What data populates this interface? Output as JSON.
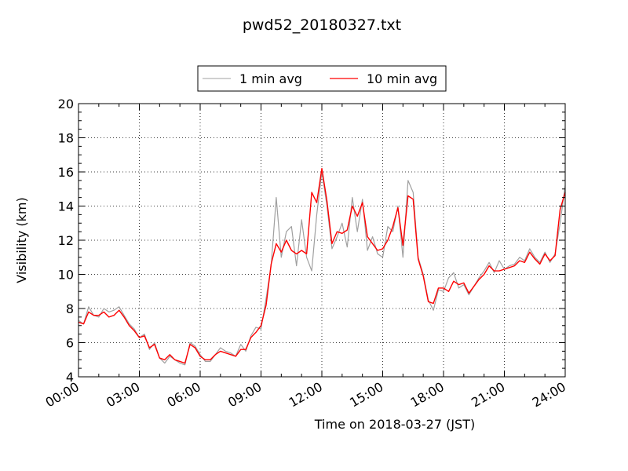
{
  "chart_data": {
    "type": "line",
    "title": "pwd52_20180327.txt",
    "xlabel": "Time on 2018-03-27 (JST)",
    "ylabel": "Visibility (km)",
    "xlim": [
      "00:00",
      "24:00"
    ],
    "ylim": [
      4,
      20
    ],
    "x_ticks": [
      "00:00",
      "03:00",
      "06:00",
      "09:00",
      "12:00",
      "15:00",
      "18:00",
      "21:00",
      "24:00"
    ],
    "y_ticks": [
      "4",
      "6",
      "8",
      "10",
      "12",
      "14",
      "16",
      "18",
      "20"
    ],
    "grid": true,
    "legend_position": "top-center",
    "series": [
      {
        "name": "1 min avg",
        "color": "#a0a0a0",
        "x": [
          "00:00",
          "00:15",
          "00:30",
          "00:45",
          "01:00",
          "01:15",
          "01:30",
          "01:45",
          "02:00",
          "02:15",
          "02:30",
          "02:45",
          "03:00",
          "03:15",
          "03:30",
          "03:45",
          "04:00",
          "04:15",
          "04:30",
          "04:45",
          "05:00",
          "05:15",
          "05:30",
          "05:45",
          "06:00",
          "06:15",
          "06:30",
          "06:45",
          "07:00",
          "07:15",
          "07:30",
          "07:45",
          "08:00",
          "08:15",
          "08:30",
          "08:45",
          "09:00",
          "09:15",
          "09:30",
          "09:45",
          "10:00",
          "10:15",
          "10:30",
          "10:45",
          "11:00",
          "11:15",
          "11:30",
          "11:45",
          "12:00",
          "12:15",
          "12:30",
          "12:45",
          "13:00",
          "13:15",
          "13:30",
          "13:45",
          "14:00",
          "14:15",
          "14:30",
          "14:45",
          "15:00",
          "15:15",
          "15:30",
          "15:45",
          "16:00",
          "16:15",
          "16:30",
          "16:45",
          "17:00",
          "17:15",
          "17:30",
          "17:45",
          "18:00",
          "18:15",
          "18:30",
          "18:45",
          "19:00",
          "19:15",
          "19:30",
          "19:45",
          "20:00",
          "20:15",
          "20:30",
          "20:45",
          "21:00",
          "21:15",
          "21:30",
          "21:45",
          "22:00",
          "22:15",
          "22:30",
          "22:45",
          "23:00",
          "23:15",
          "23:30",
          "23:45",
          "24:00"
        ],
        "values": [
          7.3,
          7.1,
          8.1,
          7.6,
          7.5,
          8.0,
          7.8,
          7.9,
          8.1,
          7.6,
          7.1,
          6.8,
          6.3,
          6.5,
          5.6,
          6.0,
          5.1,
          4.8,
          5.2,
          5.0,
          4.8,
          4.7,
          6.0,
          5.8,
          5.3,
          4.9,
          4.9,
          5.3,
          5.7,
          5.5,
          5.4,
          5.2,
          5.9,
          5.5,
          6.4,
          6.9,
          6.8,
          8.6,
          10.5,
          14.5,
          11.0,
          12.5,
          12.8,
          10.5,
          13.2,
          11.0,
          10.2,
          13.5,
          16.0,
          14.0,
          11.5,
          12.2,
          13.0,
          11.6,
          14.5,
          12.5,
          14.4,
          11.4,
          12.2,
          11.2,
          11.0,
          12.8,
          12.5,
          14.0,
          11.0,
          15.5,
          14.8,
          11.0,
          10.0,
          8.5,
          7.9,
          9.1,
          9.0,
          9.8,
          10.1,
          9.2,
          9.4,
          8.8,
          9.3,
          9.8,
          10.2,
          10.7,
          10.1,
          10.8,
          10.3,
          10.5,
          10.6,
          11.0,
          10.8,
          11.5,
          11.0,
          10.7,
          11.3,
          10.7,
          11.2,
          13.0,
          15.2
        ]
      },
      {
        "name": "10 min avg",
        "color": "#ff0000",
        "x": [
          "00:00",
          "00:15",
          "00:30",
          "00:45",
          "01:00",
          "01:15",
          "01:30",
          "01:45",
          "02:00",
          "02:15",
          "02:30",
          "02:45",
          "03:00",
          "03:15",
          "03:30",
          "03:45",
          "04:00",
          "04:15",
          "04:30",
          "04:45",
          "05:00",
          "05:15",
          "05:30",
          "05:45",
          "06:00",
          "06:15",
          "06:30",
          "06:45",
          "07:00",
          "07:15",
          "07:30",
          "07:45",
          "08:00",
          "08:15",
          "08:30",
          "08:45",
          "09:00",
          "09:15",
          "09:30",
          "09:45",
          "10:00",
          "10:15",
          "10:30",
          "10:45",
          "11:00",
          "11:15",
          "11:30",
          "11:45",
          "12:00",
          "12:15",
          "12:30",
          "12:45",
          "13:00",
          "13:15",
          "13:30",
          "13:45",
          "14:00",
          "14:15",
          "14:30",
          "14:45",
          "15:00",
          "15:15",
          "15:30",
          "15:45",
          "16:00",
          "16:15",
          "16:30",
          "16:45",
          "17:00",
          "17:15",
          "17:30",
          "17:45",
          "18:00",
          "18:15",
          "18:30",
          "18:45",
          "19:00",
          "19:15",
          "19:30",
          "19:45",
          "20:00",
          "20:15",
          "20:30",
          "20:45",
          "21:00",
          "21:15",
          "21:30",
          "21:45",
          "22:00",
          "22:15",
          "22:30",
          "22:45",
          "23:00",
          "23:15",
          "23:30",
          "23:45",
          "24:00"
        ],
        "values": [
          7.2,
          7.1,
          7.8,
          7.6,
          7.6,
          7.8,
          7.5,
          7.6,
          7.9,
          7.5,
          7.0,
          6.7,
          6.3,
          6.4,
          5.7,
          5.9,
          5.1,
          5.0,
          5.3,
          5.0,
          4.9,
          4.8,
          5.9,
          5.7,
          5.2,
          5.0,
          5.0,
          5.3,
          5.5,
          5.4,
          5.3,
          5.2,
          5.6,
          5.6,
          6.3,
          6.6,
          7.0,
          8.2,
          10.6,
          11.8,
          11.3,
          12.0,
          11.4,
          11.2,
          11.4,
          11.2,
          14.8,
          14.2,
          16.2,
          14.3,
          11.8,
          12.5,
          12.4,
          12.6,
          14.0,
          13.4,
          14.2,
          12.2,
          11.8,
          11.4,
          11.5,
          12.0,
          12.8,
          13.9,
          11.7,
          14.6,
          14.4,
          10.9,
          9.9,
          8.4,
          8.3,
          9.2,
          9.2,
          9.0,
          9.6,
          9.4,
          9.5,
          8.9,
          9.3,
          9.7,
          10.0,
          10.5,
          10.2,
          10.2,
          10.3,
          10.4,
          10.5,
          10.8,
          10.7,
          11.3,
          10.9,
          10.6,
          11.2,
          10.8,
          11.1,
          13.8,
          14.8
        ]
      }
    ]
  }
}
